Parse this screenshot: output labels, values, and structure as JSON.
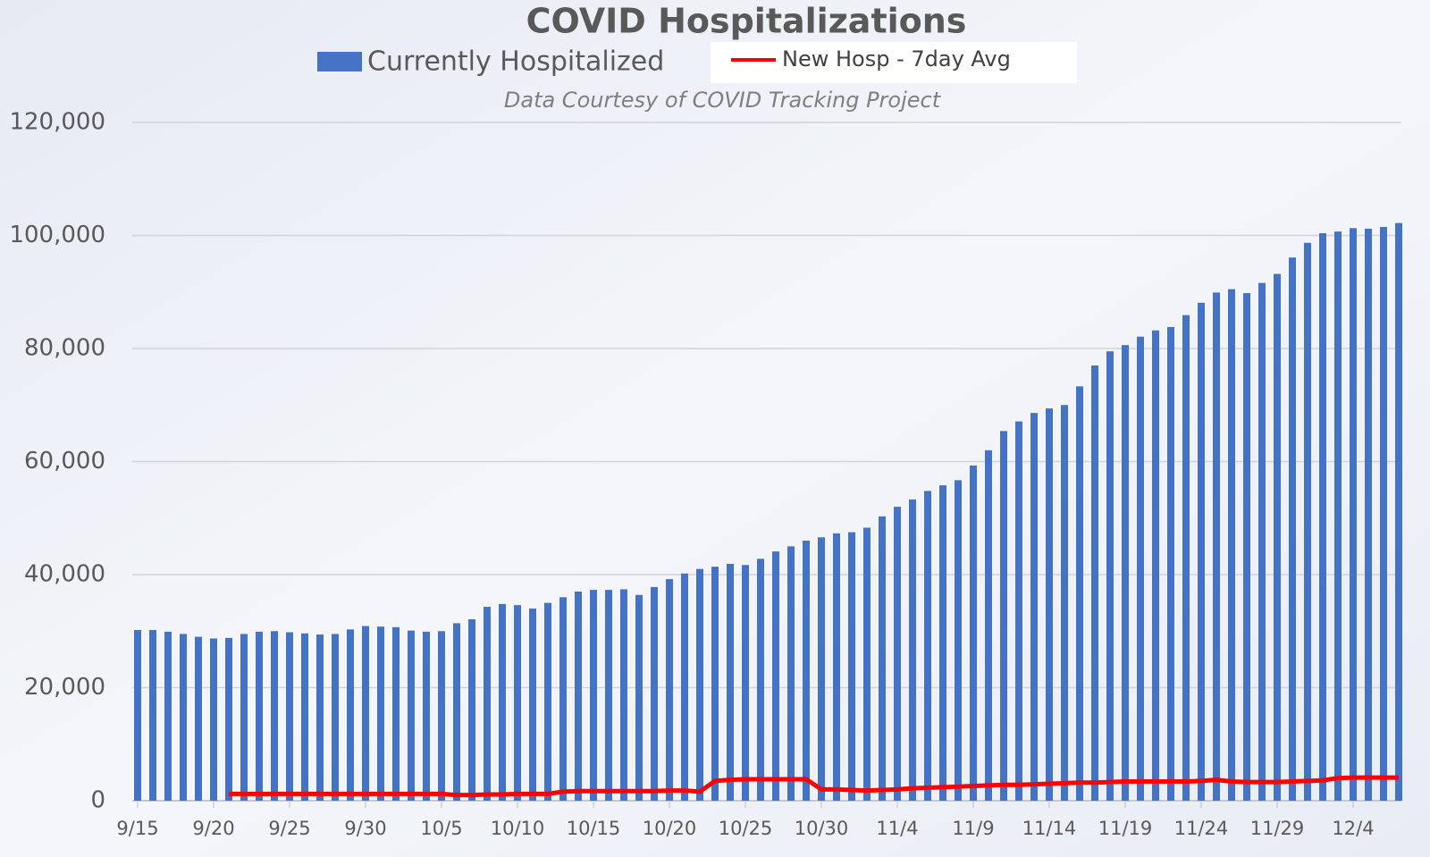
{
  "chart_data": {
    "type": "bar",
    "title": "COVID Hospitalizations",
    "subtitle": "Data Courtesy of COVID Tracking Project",
    "legend": "top",
    "grid": true,
    "categories": [
      "9/15",
      null,
      null,
      null,
      null,
      "9/20",
      null,
      null,
      null,
      null,
      "9/25",
      null,
      null,
      null,
      null,
      "9/30",
      null,
      null,
      null,
      null,
      "10/5",
      null,
      null,
      null,
      null,
      "10/10",
      null,
      null,
      null,
      null,
      "10/15",
      null,
      null,
      null,
      null,
      "10/20",
      null,
      null,
      null,
      null,
      "10/25",
      null,
      null,
      null,
      null,
      "10/30",
      null,
      null,
      null,
      null,
      "11/4",
      null,
      null,
      null,
      null,
      "11/9",
      null,
      null,
      null,
      null,
      "11/14",
      null,
      null,
      null,
      null,
      "11/19",
      null,
      null,
      null,
      null,
      "11/24",
      null,
      null,
      null,
      null,
      "11/29",
      null,
      null,
      null,
      null,
      "12/4",
      null,
      null,
      null
    ],
    "series": [
      {
        "name": "Currently Hospitalized",
        "type": "bar",
        "color": "#4472c4",
        "values": [
          30200,
          30200,
          29900,
          29500,
          29000,
          28700,
          28800,
          29500,
          29900,
          30000,
          29800,
          29600,
          29400,
          29500,
          30300,
          30900,
          30800,
          30700,
          30100,
          29900,
          30000,
          31400,
          32100,
          34300,
          34800,
          34600,
          34000,
          35000,
          36000,
          37000,
          37300,
          37300,
          37400,
          36400,
          37800,
          39200,
          40200,
          41000,
          41400,
          41900,
          41700,
          42800,
          44100,
          45000,
          46000,
          46600,
          47300,
          47500,
          48300,
          50300,
          52000,
          53300,
          54800,
          55800,
          56700,
          59300,
          62000,
          65400,
          67100,
          68600,
          69400,
          70000,
          73300,
          77000,
          79500,
          80600,
          82100,
          83200,
          83800,
          85900,
          88100,
          89900,
          90500,
          89800,
          91600,
          93200,
          96100,
          98700,
          100400,
          100700,
          101300,
          101200,
          101500,
          102200
        ]
      },
      {
        "name": "New Hosp - 7day Avg",
        "type": "line",
        "color": "#ff0000",
        "values": [
          null,
          null,
          null,
          null,
          null,
          null,
          1200,
          1200,
          1200,
          1200,
          1200,
          1200,
          1200,
          1200,
          1200,
          1200,
          1200,
          1200,
          1200,
          1200,
          1200,
          1000,
          1000,
          1100,
          1100,
          1200,
          1200,
          1200,
          1600,
          1700,
          1700,
          1700,
          1700,
          1700,
          1700,
          1800,
          1800,
          1600,
          3500,
          3700,
          3800,
          3800,
          3800,
          3800,
          3800,
          2000,
          2000,
          1900,
          1800,
          1900,
          2000,
          2200,
          2300,
          2400,
          2500,
          2600,
          2700,
          2800,
          2800,
          2900,
          3000,
          3100,
          3200,
          3200,
          3300,
          3400,
          3400,
          3400,
          3400,
          3400,
          3500,
          3700,
          3400,
          3300,
          3300,
          3300,
          3400,
          3500,
          3600,
          4000,
          4100,
          4100,
          4100,
          4100
        ]
      }
    ],
    "ylim": [
      0,
      120000
    ],
    "yticks": [
      0,
      {
        "value": 20000,
        "label": "20,000"
      },
      {
        "value": 40000,
        "label": "40,000"
      },
      {
        "value": 60000,
        "label": "60,000"
      },
      {
        "value": 80000,
        "label": "80,000"
      },
      {
        "value": 100000,
        "label": "100,000"
      },
      {
        "value": 120000,
        "label": "120,000"
      }
    ]
  }
}
